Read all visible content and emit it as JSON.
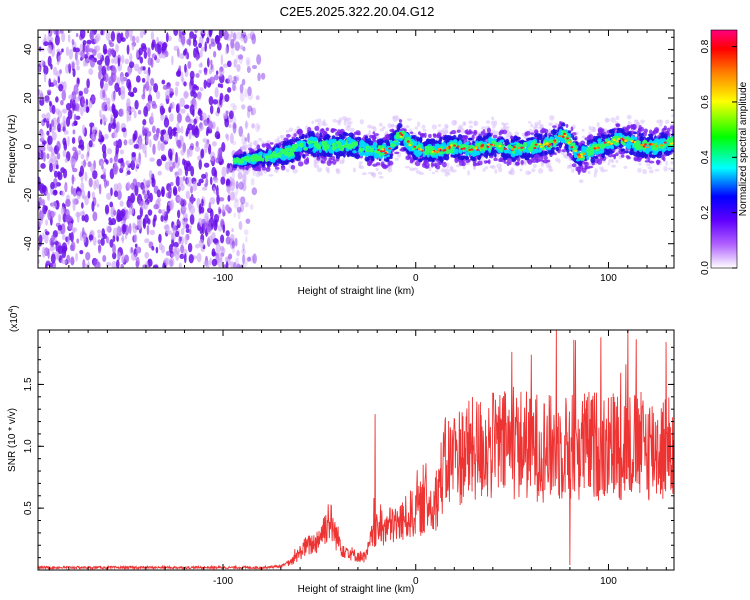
{
  "title": "C2E5.2025.322.20.04.G12",
  "chart_data": [
    {
      "type": "heatmap",
      "xlabel": "Height of straight line (km)",
      "ylabel": "Frequency (Hz)",
      "xlim": [
        -196,
        134
      ],
      "ylim": [
        -50,
        48
      ],
      "x_ticks": [
        -100,
        0,
        100
      ],
      "x_tick_labels": [
        "-100",
        "0",
        "100"
      ],
      "y_ticks": [
        -40,
        -20,
        0,
        20,
        40
      ],
      "y_tick_labels": [
        "-40",
        "-20",
        "0",
        "20",
        "40"
      ],
      "noise_region": [
        -196,
        -78
      ],
      "signal_start": -94,
      "signal_trace": [
        {
          "x": -94,
          "f": -6
        },
        {
          "x": -85,
          "f": -5
        },
        {
          "x": -75,
          "f": -4
        },
        {
          "x": -65,
          "f": -2
        },
        {
          "x": -55,
          "f": 1
        },
        {
          "x": -45,
          "f": 0
        },
        {
          "x": -35,
          "f": 1
        },
        {
          "x": -25,
          "f": -1
        },
        {
          "x": -15,
          "f": -2
        },
        {
          "x": -8,
          "f": 5
        },
        {
          "x": 0,
          "f": -1
        },
        {
          "x": 10,
          "f": -2
        },
        {
          "x": 20,
          "f": 0
        },
        {
          "x": 30,
          "f": -1
        },
        {
          "x": 40,
          "f": 1
        },
        {
          "x": 50,
          "f": -1
        },
        {
          "x": 60,
          "f": 0
        },
        {
          "x": 70,
          "f": 1
        },
        {
          "x": 77,
          "f": 5
        },
        {
          "x": 85,
          "f": -4
        },
        {
          "x": 95,
          "f": 0
        },
        {
          "x": 105,
          "f": 3
        },
        {
          "x": 115,
          "f": 1
        },
        {
          "x": 125,
          "f": 0
        },
        {
          "x": 134,
          "f": 2
        }
      ],
      "colorbar": {
        "label": "Normalized spectral amplitude",
        "range": [
          0.0,
          0.86
        ],
        "ticks": [
          0.0,
          0.2,
          0.4,
          0.6,
          0.8
        ],
        "tick_labels": [
          "0.0",
          "0.2",
          "0.4",
          "0.6",
          "0.8"
        ]
      },
      "colors": {
        "stops": [
          "#ffffff",
          "#8000ff",
          "#0000ff",
          "#00ffff",
          "#00ff00",
          "#ffff00",
          "#ff8000",
          "#ff0000",
          "#ff0080"
        ]
      }
    },
    {
      "type": "line",
      "xlabel": "Height of straight line (km)",
      "ylabel": "SNR (10 * v/v)",
      "scale_label": "(x10",
      "scale_exp": "4",
      "scale_close": ")",
      "xlim": [
        -196,
        134
      ],
      "ylim": [
        0,
        1.94
      ],
      "x_ticks": [
        -100,
        0,
        100
      ],
      "x_tick_labels": [
        "-100",
        "0",
        "100"
      ],
      "y_ticks": [
        0.5,
        1.0,
        1.5
      ],
      "y_tick_labels": [
        "0.5",
        "1.0",
        "1.5"
      ],
      "color": "#ee3333",
      "series_envelope": [
        {
          "x": -196,
          "mean": 0.02
        },
        {
          "x": -80,
          "mean": 0.02
        },
        {
          "x": -70,
          "mean": 0.03
        },
        {
          "x": -64,
          "mean": 0.07
        },
        {
          "x": -58,
          "mean": 0.18
        },
        {
          "x": -52,
          "mean": 0.22
        },
        {
          "x": -48,
          "mean": 0.32
        },
        {
          "x": -45,
          "mean": 0.42
        },
        {
          "x": -42,
          "mean": 0.3
        },
        {
          "x": -38,
          "mean": 0.18
        },
        {
          "x": -32,
          "mean": 0.12
        },
        {
          "x": -26,
          "mean": 0.1
        },
        {
          "x": -22,
          "mean": 0.3
        },
        {
          "x": -15,
          "mean": 0.35
        },
        {
          "x": -8,
          "mean": 0.38
        },
        {
          "x": 0,
          "mean": 0.48
        },
        {
          "x": 10,
          "mean": 0.55
        },
        {
          "x": 15,
          "mean": 0.85
        },
        {
          "x": 25,
          "mean": 0.95
        },
        {
          "x": 40,
          "mean": 1.0
        },
        {
          "x": 55,
          "mean": 1.02
        },
        {
          "x": 70,
          "mean": 0.98
        },
        {
          "x": 85,
          "mean": 1.0
        },
        {
          "x": 100,
          "mean": 1.02
        },
        {
          "x": 115,
          "mean": 1.0
        },
        {
          "x": 134,
          "mean": 0.98
        }
      ],
      "peaks": [
        {
          "x": -21,
          "value": 1.26
        },
        {
          "x": 60,
          "value": 1.74
        },
        {
          "x": 73,
          "value": 1.94
        },
        {
          "x": 82,
          "value": 1.86
        },
        {
          "x": 110,
          "value": 1.94
        }
      ]
    }
  ]
}
